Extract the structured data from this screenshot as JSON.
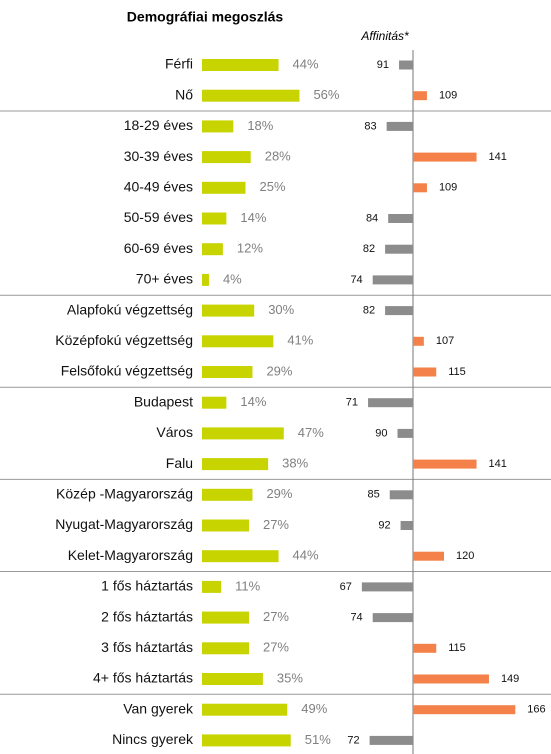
{
  "chart_data": {
    "type": "bar",
    "title": "Demográfiai megoszlás",
    "affinity_label": "Affinitás*",
    "categories": [
      "Férfi",
      "Nő",
      "18-29 éves",
      "30-39 éves",
      "40-49 éves",
      "50-59 éves",
      "60-69 éves",
      "70+ éves",
      "Alapfokú végzettség",
      "Középfokú végzettség",
      "Felsőfokú végzettség",
      "Budapest",
      "Város",
      "Falu",
      "Közép -Magyarország",
      "Nyugat-Magyarország",
      "Kelet-Magyarország",
      "1 fős háztartás",
      "2 fős háztartás",
      "3 fős háztartás",
      "4+ fős háztartás",
      "Van gyerek",
      "Nincs gyerek"
    ],
    "series": [
      {
        "color": "#c8d400",
        "values": [
          44,
          56,
          18,
          28,
          25,
          14,
          12,
          4,
          30,
          41,
          29,
          14,
          47,
          38,
          29,
          27,
          44,
          11,
          27,
          27,
          35,
          49,
          51
        ],
        "value_labels": [
          "44%",
          "56%",
          "18%",
          "28%",
          "25%",
          "14%",
          "12%",
          "4%",
          "30%",
          "41%",
          "29%",
          "14%",
          "47%",
          "38%",
          "29%",
          "27%",
          "44%",
          "11%",
          "27%",
          "27%",
          "35%",
          "49%",
          "51%"
        ]
      },
      {
        "color_below": "#8c8c8c",
        "color_above": "#f5814a",
        "baseline": 100,
        "values": [
          91,
          109,
          83,
          141,
          109,
          84,
          82,
          74,
          82,
          107,
          115,
          71,
          90,
          141,
          85,
          92,
          120,
          67,
          74,
          115,
          149,
          166,
          72
        ]
      }
    ]
  }
}
